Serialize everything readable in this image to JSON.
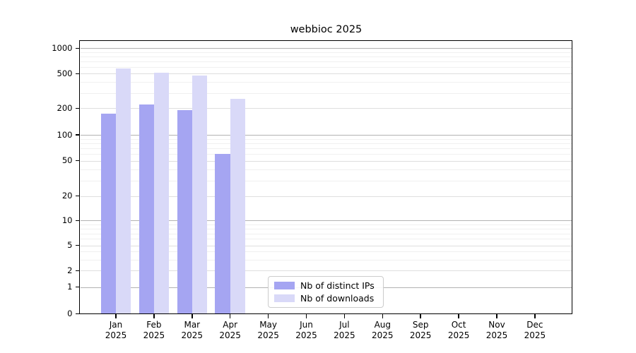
{
  "title": "webbioc 2025",
  "colors": {
    "ips_bar": "#a5a5f2",
    "downloads_bar": "#d9d9f8",
    "grid_decade": "rgba(0,0,0,0.30)",
    "grid_major": "rgba(0,0,0,0.13)",
    "grid_minor": "rgba(0,0,0,0.06)",
    "axis": "#000000",
    "background": "#ffffff"
  },
  "chart_data": {
    "type": "bar",
    "title": "webbioc 2025",
    "categories": [
      "Jan",
      "Feb",
      "Mar",
      "Apr",
      "May",
      "Jun",
      "Jul",
      "Aug",
      "Sep",
      "Oct",
      "Nov",
      "Dec"
    ],
    "year_label": "2025",
    "series": [
      {
        "name": "Nb of distinct IPs",
        "color": "#a5a5f2",
        "values": [
          175,
          220,
          190,
          60,
          null,
          null,
          null,
          null,
          null,
          null,
          null,
          null
        ]
      },
      {
        "name": "Nb of downloads",
        "color": "#d9d9f8",
        "values": [
          575,
          510,
          475,
          255,
          null,
          null,
          null,
          null,
          null,
          null,
          null,
          null
        ]
      }
    ],
    "yticks": [
      0,
      1,
      2,
      5,
      10,
      20,
      50,
      100,
      200,
      500,
      1000
    ],
    "ylim": [
      0,
      1000
    ],
    "y_scale": "log-like (linear segment below 1)",
    "grid": "horizontal only",
    "legend_position": "inside plot, lower-center-left",
    "xlabel": "",
    "ylabel": ""
  },
  "legend": {
    "items": [
      {
        "label": "Nb of distinct IPs",
        "color": "#a5a5f2"
      },
      {
        "label": "Nb of downloads",
        "color": "#d9d9f8"
      }
    ]
  }
}
